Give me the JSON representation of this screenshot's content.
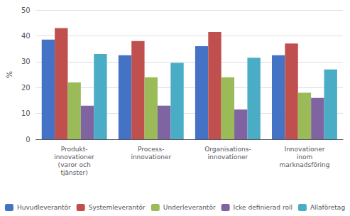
{
  "chart_data": {
    "type": "bar",
    "categories": [
      "Produkt-\ninnovationer\n(varor och\ntjänster)",
      "Process-\ninnovationer",
      "Organisations-\ninnovationer",
      "Innovationer\ninom\nmarknadsföring"
    ],
    "series": [
      {
        "name": "Huvudleverantör",
        "color": "#4472C4",
        "values": [
          38.5,
          32.5,
          36,
          32.5
        ]
      },
      {
        "name": "Systemleverantör",
        "color": "#C0504D",
        "values": [
          43,
          38,
          41.5,
          37
        ]
      },
      {
        "name": "Underleverantör",
        "color": "#9BBB59",
        "values": [
          22,
          24,
          24,
          18
        ]
      },
      {
        "name": "Icke definierad roll",
        "color": "#8064A2",
        "values": [
          13,
          13,
          11.5,
          16
        ]
      },
      {
        "name": "Allaföretag",
        "color": "#4BACC6",
        "values": [
          33,
          29.5,
          31.5,
          27
        ]
      }
    ],
    "ylabel": "%",
    "ylim": [
      0,
      50
    ],
    "yticks": [
      0,
      10,
      20,
      30,
      40,
      50
    ],
    "grid": true,
    "legend": "bottom"
  }
}
